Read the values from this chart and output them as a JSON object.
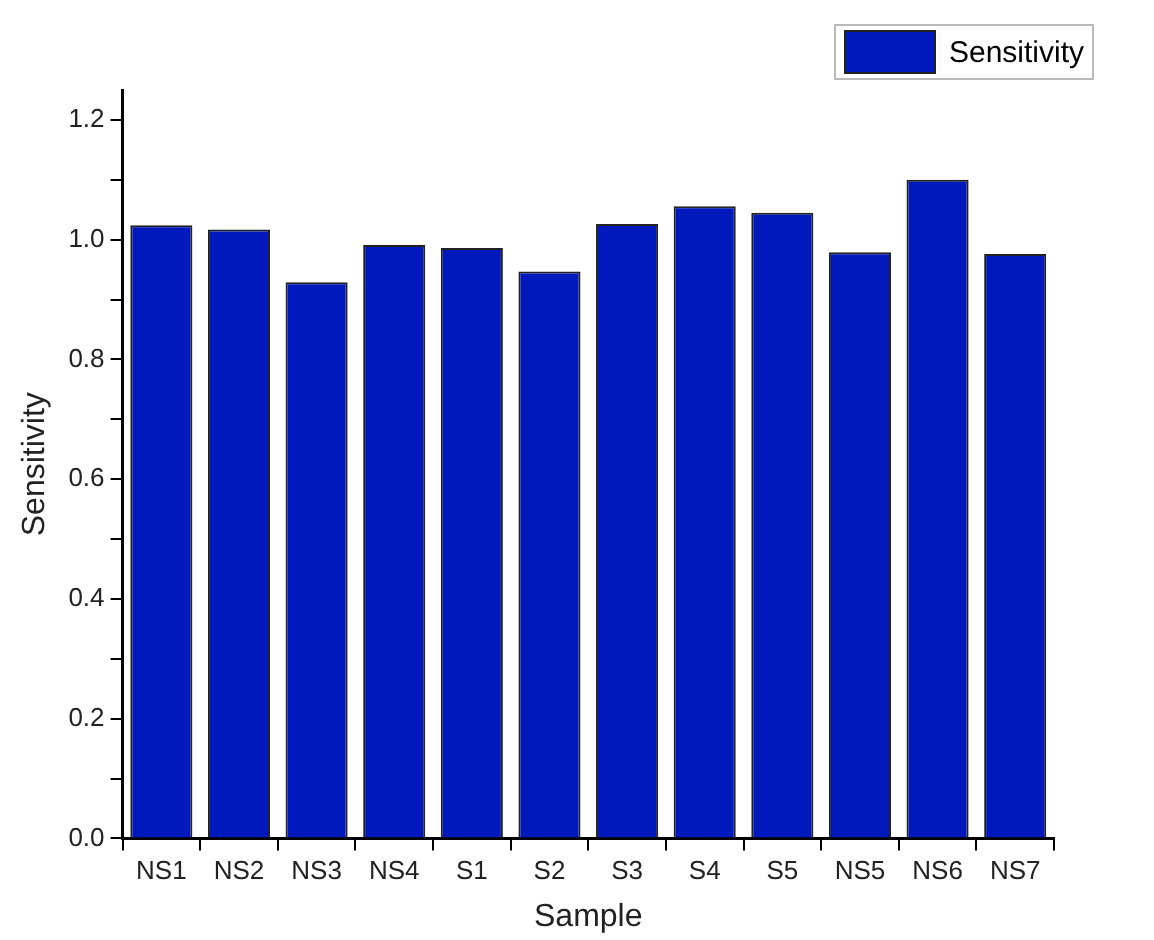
{
  "chart_data": {
    "type": "bar",
    "xlabel": "Sample",
    "ylabel": "Sensitivity",
    "categories": [
      "NS1",
      "NS2",
      "NS3",
      "NS4",
      "S1",
      "S2",
      "S3",
      "S4",
      "S5",
      "NS5",
      "NS6",
      "NS7"
    ],
    "series": [
      {
        "name": "Sensitivity",
        "color": "#0019bd",
        "values": [
          1.024,
          1.017,
          0.929,
          0.991,
          0.986,
          0.947,
          1.026,
          1.056,
          1.045,
          0.979,
          1.1,
          0.976
        ]
      }
    ],
    "ylim": [
      0,
      1.25
    ],
    "yticks": [
      {
        "value": 0,
        "label": "0.0"
      },
      {
        "value": 0.1,
        "label": null
      },
      {
        "value": 0.2,
        "label": "0.2"
      },
      {
        "value": 0.3,
        "label": null
      },
      {
        "value": 0.4,
        "label": "0.4"
      },
      {
        "value": 0.5,
        "label": null
      },
      {
        "value": 0.6,
        "label": "0.6"
      },
      {
        "value": 0.7,
        "label": null
      },
      {
        "value": 0.8,
        "label": "0.8"
      },
      {
        "value": 0.9,
        "label": null
      },
      {
        "value": 1.0,
        "label": "1.0"
      },
      {
        "value": 1.1,
        "label": null
      },
      {
        "value": 1.2,
        "label": "1.2"
      }
    ],
    "grid": false,
    "legend": "top right"
  }
}
